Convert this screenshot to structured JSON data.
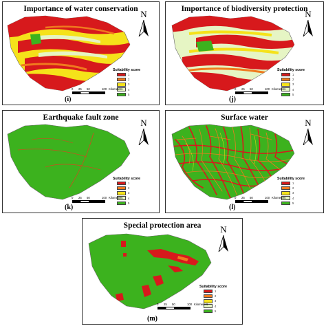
{
  "panels": {
    "i": {
      "title": "Importance of water conservation",
      "label": "(i)"
    },
    "j": {
      "title": "Importance of biodiversity protection",
      "label": "(j)"
    },
    "k": {
      "title": "Earthquake fault zone",
      "label": "(k)"
    },
    "l": {
      "title": "Surface water",
      "label": "(l)"
    },
    "m": {
      "title": "Special protection area",
      "label": "(m)"
    }
  },
  "legend": {
    "title": "Suitability score",
    "items": [
      {
        "score": "1",
        "color": "#d7191c"
      },
      {
        "score": "2",
        "color": "#f07a1e"
      },
      {
        "score": "3",
        "color": "#f5e21a"
      },
      {
        "score": "4",
        "color": "#e6f5c4"
      },
      {
        "score": "5",
        "color": "#3cb21e"
      }
    ]
  },
  "scalebar": {
    "ticks": [
      "0",
      "25",
      "50",
      "100"
    ],
    "unit": "Kilometers"
  },
  "north_label": "N",
  "colors": {
    "red": "#d7191c",
    "orange": "#f07a1e",
    "yellow": "#f5e21a",
    "pale": "#e6f5c4",
    "green": "#3cb21e",
    "dark_red": "#b3261e"
  }
}
